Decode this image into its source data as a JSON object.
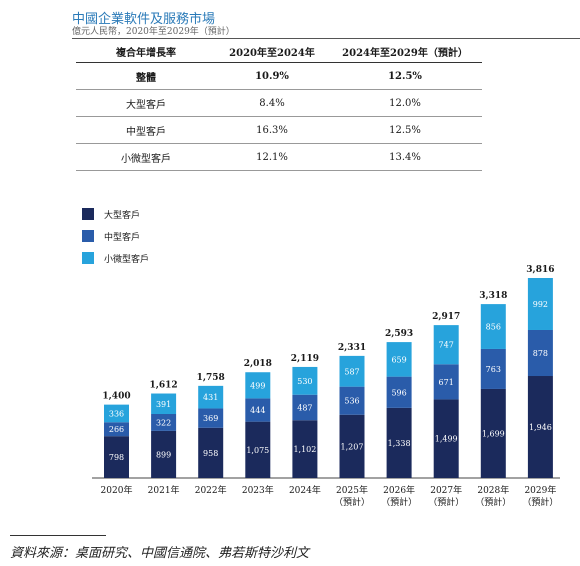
{
  "header": {
    "title": "中國企業軟件及服務市場",
    "subtitle": "億元人民幣，2020年至2029年（預計）"
  },
  "table": {
    "headers": [
      "複合年增長率",
      "2020年至2024年",
      "2024年至2029年（預計）"
    ],
    "rows": [
      {
        "label": "整體",
        "c1": "10.9%",
        "c2": "12.5%"
      },
      {
        "label": "大型客戶",
        "c1": "8.4%",
        "c2": "12.0%"
      },
      {
        "label": "中型客戶",
        "c1": "16.3%",
        "c2": "12.5%"
      },
      {
        "label": "小微型客戶",
        "c1": "12.1%",
        "c2": "13.4%"
      }
    ]
  },
  "chart_data": {
    "type": "bar",
    "stacked": true,
    "categories": [
      "2020年",
      "2021年",
      "2022年",
      "2023年",
      "2024年",
      "2025年",
      "2026年",
      "2027年",
      "2028年",
      "2029年"
    ],
    "category_notes": [
      "",
      "",
      "",
      "",
      "",
      "（預計）",
      "（預計）",
      "（預計）",
      "（預計）",
      "（預計）"
    ],
    "series": [
      {
        "name": "大型客戶",
        "color": "#1b2a5c",
        "values": [
          798,
          899,
          958,
          1075,
          1102,
          1207,
          1338,
          1499,
          1699,
          1946
        ],
        "labels": [
          "798",
          "899",
          "958",
          "1,075",
          "1,102",
          "1,207",
          "1,338",
          "1,499",
          "1,699",
          "1,946"
        ]
      },
      {
        "name": "中型客戶",
        "color": "#2a5caa",
        "values": [
          266,
          322,
          369,
          444,
          487,
          536,
          596,
          671,
          763,
          878
        ],
        "labels": [
          "266",
          "322",
          "369",
          "444",
          "487",
          "536",
          "596",
          "671",
          "763",
          "878"
        ]
      },
      {
        "name": "小微型客戶",
        "color": "#27a3dc",
        "values": [
          336,
          391,
          431,
          499,
          530,
          587,
          659,
          747,
          856,
          992
        ],
        "labels": [
          "336",
          "391",
          "431",
          "499",
          "530",
          "587",
          "659",
          "747",
          "856",
          "992"
        ]
      }
    ],
    "totals": [
      1400,
      1612,
      1758,
      2018,
      2119,
      2331,
      2593,
      2917,
      3318,
      3816
    ],
    "total_labels": [
      "1,400",
      "1,612",
      "1,758",
      "2,018",
      "2,119",
      "2,331",
      "2,593",
      "2,917",
      "3,318",
      "3,816"
    ],
    "ylim": [
      0,
      3816
    ]
  },
  "footer": {
    "source": "資料來源：桌面研究、中國信通院、弗若斯特沙利文"
  }
}
